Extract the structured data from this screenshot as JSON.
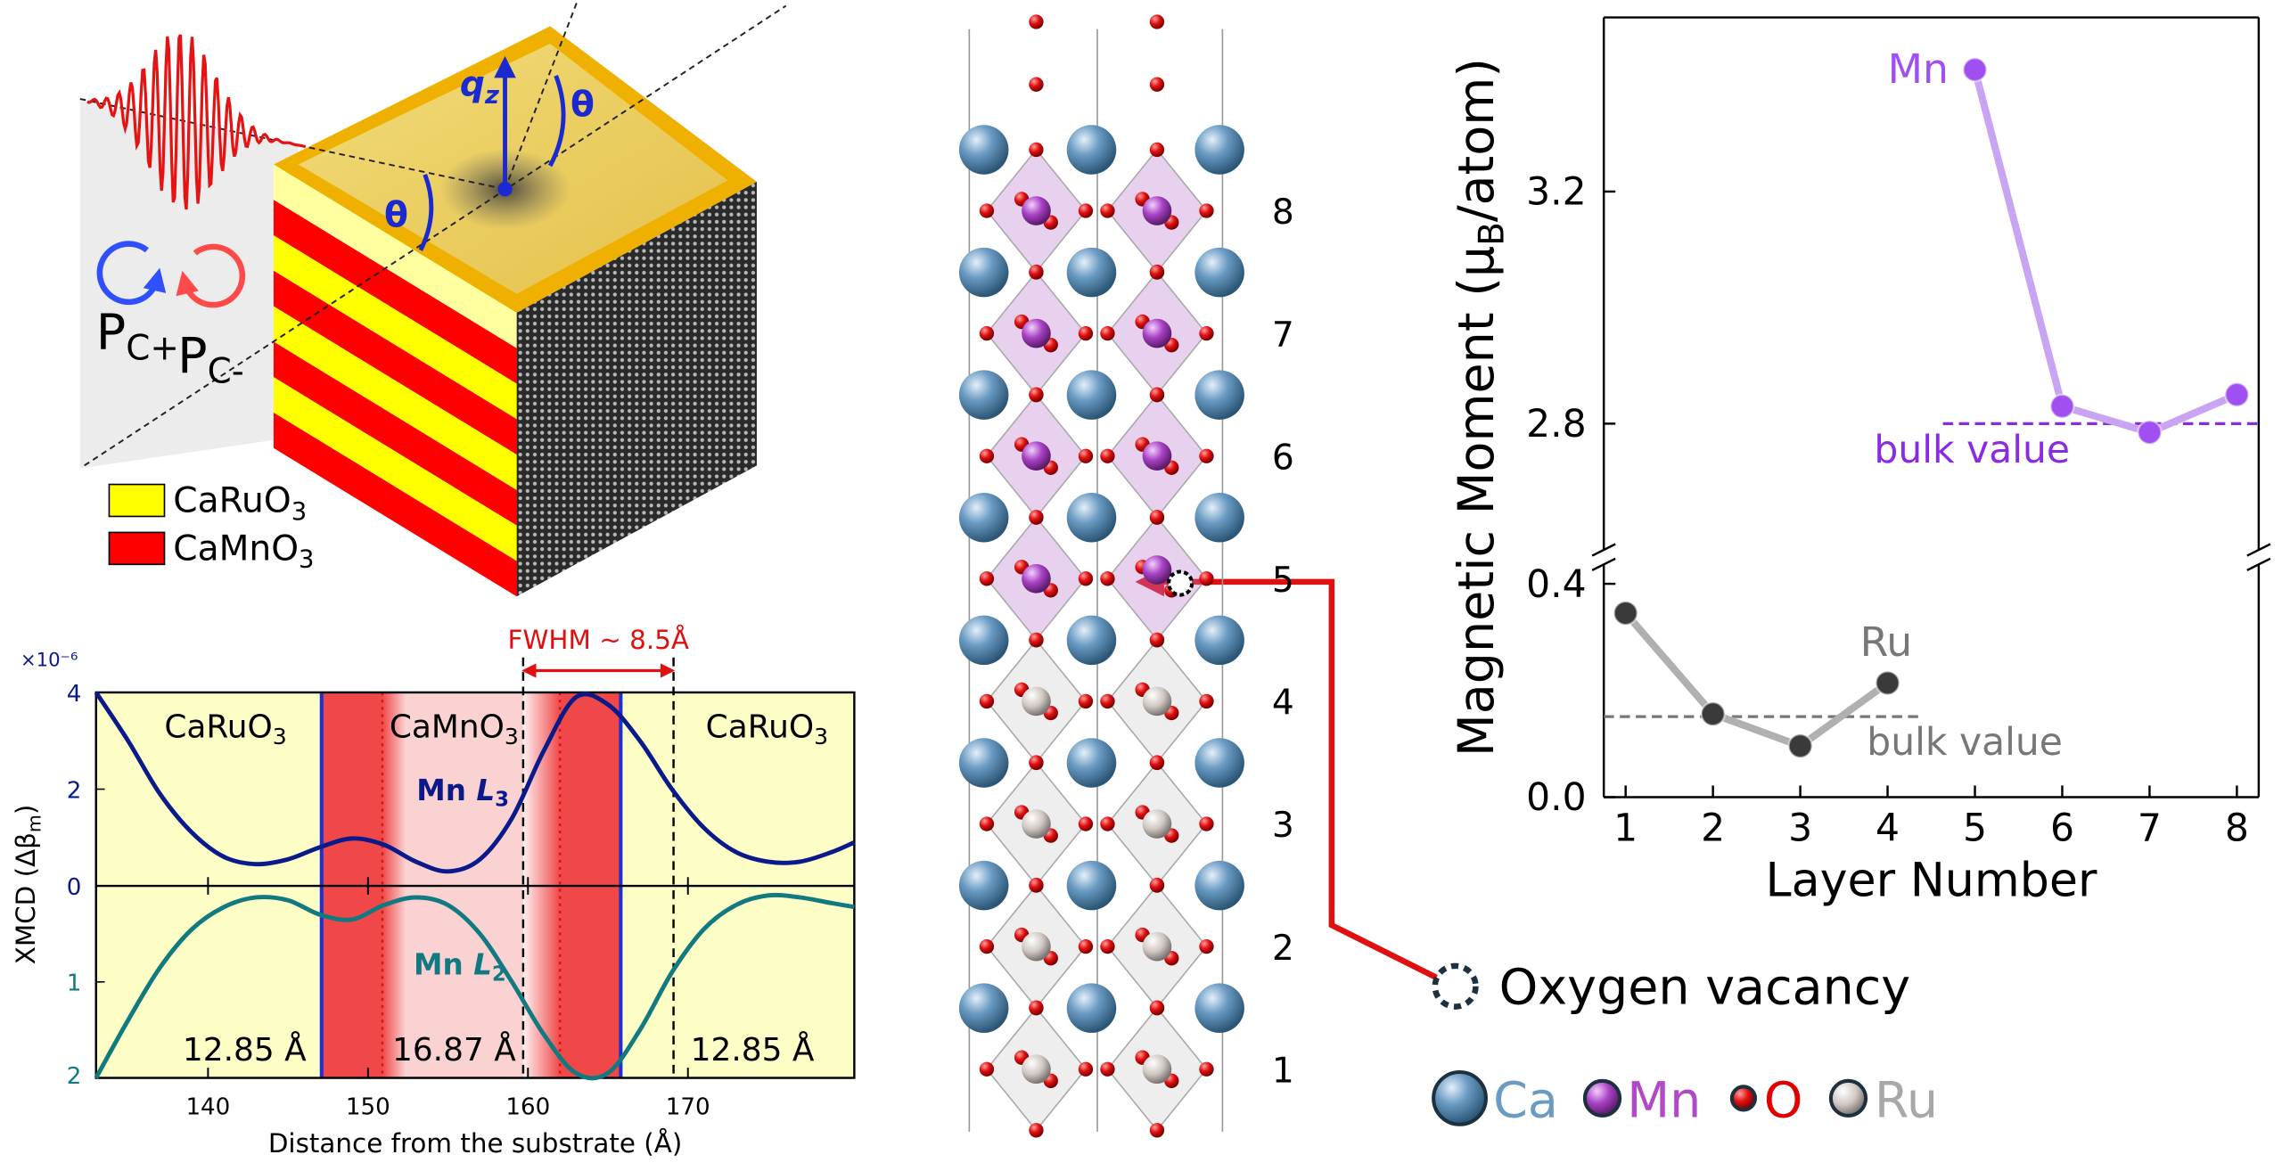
{
  "schematic": {
    "qz": {
      "text": "q",
      "sub": "z"
    },
    "theta": [
      "θ",
      "θ"
    ],
    "polarizations": [
      {
        "text": "P",
        "sub": "C+"
      },
      {
        "text": "P",
        "sub": "C-"
      }
    ],
    "legend": [
      {
        "text": "CaRuO",
        "sub": "3",
        "color": "#ffff00"
      },
      {
        "text": "CaMnO",
        "sub": "3",
        "color": "#ff0000"
      }
    ]
  },
  "structure": {
    "layer_labels": [
      "1",
      "2",
      "3",
      "4",
      "5",
      "6",
      "7",
      "8"
    ],
    "vacancy_label": "Oxygen vacancy",
    "legend": [
      {
        "text": "Ca",
        "color": "#6a9bc3"
      },
      {
        "text": "Mn",
        "color": "#b048c8"
      },
      {
        "text": "O",
        "color": "#e00000"
      },
      {
        "text": "Ru",
        "color": "#a8a8a8"
      }
    ]
  },
  "chart_data": [
    {
      "type": "line",
      "xlabel": "Distance from the substrate (Å)",
      "ylabel": {
        "text": "XMCD (Δβ",
        "sub": "m",
        "tail": ")"
      },
      "y_multiplier": "×10⁻⁶",
      "region_labels": [
        {
          "text": "CaRuO",
          "sub": "3"
        },
        {
          "text": "CaMnO",
          "sub": "3"
        },
        {
          "text": "CaRuO",
          "sub": "3"
        }
      ],
      "thickness_labels": [
        "12.85 Å",
        "16.87 Å",
        "12.85 Å"
      ],
      "fwhm_label": "FWHM ~ 8.5Å",
      "interfaces": [
        147.1,
        165.8
      ],
      "dotted_lines": [
        150.9,
        162.0
      ],
      "dashed_lines": [
        159.7,
        169.1
      ],
      "xlim": [
        133,
        180.4
      ],
      "xticks": [
        140,
        150,
        160,
        170
      ],
      "ylim": [
        0,
        4
      ],
      "yticks": [
        0,
        2,
        4
      ],
      "y2lim": [
        0,
        2
      ],
      "y2ticks": [
        1,
        2
      ],
      "y2_inverted": true,
      "x": [
        133,
        135,
        137,
        139,
        141,
        143,
        145,
        147,
        149,
        151,
        153,
        155,
        157,
        159,
        161,
        163,
        165,
        167,
        169,
        171,
        173,
        175,
        177,
        179,
        180.4
      ],
      "series": [
        {
          "name": {
            "text": "Mn ",
            "italic": "L",
            "sub": "3"
          },
          "color": "#0a1a8a",
          "values": [
            4.0,
            3.0,
            1.9,
            1.1,
            0.6,
            0.45,
            0.55,
            0.8,
            0.98,
            0.85,
            0.5,
            0.3,
            0.55,
            1.4,
            2.8,
            3.9,
            3.75,
            3.0,
            2.0,
            1.2,
            0.7,
            0.5,
            0.5,
            0.7,
            0.9
          ]
        },
        {
          "name": {
            "text": "Mn ",
            "italic": "L",
            "sub": "2"
          },
          "color": "#117a80",
          "axis": "y2",
          "values": [
            2.0,
            1.4,
            0.85,
            0.45,
            0.22,
            0.12,
            0.15,
            0.3,
            0.35,
            0.2,
            0.12,
            0.2,
            0.5,
            1.0,
            1.55,
            1.95,
            1.95,
            1.5,
            0.9,
            0.45,
            0.2,
            0.1,
            0.12,
            0.18,
            0.22
          ]
        }
      ]
    },
    {
      "type": "line",
      "xlabel": "Layer Number",
      "ylabel": {
        "text": "Magnetic Moment (μ",
        "sub": "B",
        "tail": "/atom)"
      },
      "xlim": [
        0.75,
        8.25
      ],
      "xticks": [
        1,
        2,
        3,
        4,
        5,
        6,
        7,
        8
      ],
      "ylim": [
        0,
        0.45
      ],
      "yticks": [
        {
          "value": 0,
          "label": "0.0"
        },
        {
          "value": 0.4,
          "label": "0.4"
        }
      ],
      "ylim_upper": [
        2.57,
        3.5
      ],
      "yticks_upper": [
        {
          "value": 2.8,
          "label": "2.8"
        },
        {
          "value": 3.2,
          "label": "3.2"
        }
      ],
      "series": [
        {
          "name": "Mn",
          "color": "#a050f0",
          "line_color": "#c8a4f2",
          "axis": "upper",
          "x": [
            5,
            6,
            7,
            8
          ],
          "values": [
            3.41,
            2.83,
            2.785,
            2.85
          ],
          "bulk": 2.8,
          "bulk_label": "bulk value",
          "bulk_color": "#8a2be2"
        },
        {
          "name": "Ru",
          "color": "#3a3a3a",
          "line_color": "#b0b0b0",
          "axis": "lower",
          "x": [
            1,
            2,
            3,
            4
          ],
          "values": [
            0.345,
            0.156,
            0.096,
            0.214
          ],
          "bulk": 0.151,
          "bulk_label": "bulk value",
          "bulk_color": "#777777"
        }
      ]
    }
  ]
}
